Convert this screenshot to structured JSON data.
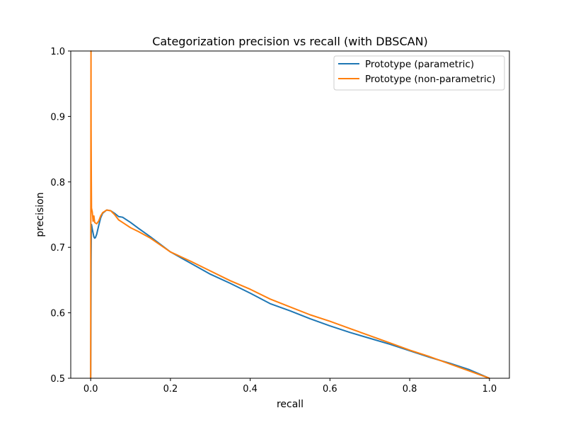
{
  "chart_data": {
    "type": "line",
    "title": "Categorization precision vs recall (with DBSCAN)",
    "xlabel": "recall",
    "ylabel": "precision",
    "xlim": [
      -0.05,
      1.05
    ],
    "ylim": [
      0.5,
      1.0
    ],
    "xticks": [
      0.0,
      0.2,
      0.4,
      0.6,
      0.8,
      1.0
    ],
    "xtick_labels": [
      "0.0",
      "0.2",
      "0.4",
      "0.6",
      "0.8",
      "1.0"
    ],
    "yticks": [
      0.5,
      0.6,
      0.7,
      0.8,
      0.9,
      1.0
    ],
    "ytick_labels": [
      "0.5",
      "0.6",
      "0.7",
      "0.8",
      "0.9",
      "1.0"
    ],
    "grid": false,
    "legend_position": "top-right",
    "series": [
      {
        "name": "Prototype (parametric)",
        "color": "#1f77b4",
        "points": [
          [
            0.0,
            0.5
          ],
          [
            0.0005,
            0.58
          ],
          [
            0.001,
            0.68
          ],
          [
            0.0015,
            0.72
          ],
          [
            0.002,
            0.735
          ],
          [
            0.004,
            0.728
          ],
          [
            0.006,
            0.722
          ],
          [
            0.008,
            0.716
          ],
          [
            0.01,
            0.714
          ],
          [
            0.012,
            0.715
          ],
          [
            0.015,
            0.72
          ],
          [
            0.02,
            0.733
          ],
          [
            0.025,
            0.745
          ],
          [
            0.03,
            0.752
          ],
          [
            0.04,
            0.757
          ],
          [
            0.05,
            0.756
          ],
          [
            0.06,
            0.752
          ],
          [
            0.07,
            0.747
          ],
          [
            0.08,
            0.746
          ],
          [
            0.1,
            0.738
          ],
          [
            0.12,
            0.729
          ],
          [
            0.15,
            0.716
          ],
          [
            0.2,
            0.693
          ],
          [
            0.25,
            0.676
          ],
          [
            0.3,
            0.659
          ],
          [
            0.35,
            0.645
          ],
          [
            0.4,
            0.63
          ],
          [
            0.45,
            0.614
          ],
          [
            0.5,
            0.603
          ],
          [
            0.55,
            0.591
          ],
          [
            0.6,
            0.58
          ],
          [
            0.65,
            0.57
          ],
          [
            0.7,
            0.561
          ],
          [
            0.75,
            0.552
          ],
          [
            0.8,
            0.542
          ],
          [
            0.85,
            0.532
          ],
          [
            0.9,
            0.523
          ],
          [
            0.95,
            0.513
          ],
          [
            1.0,
            0.5
          ]
        ]
      },
      {
        "name": "Prototype (non-parametric)",
        "color": "#ff7f0e",
        "points": [
          [
            0.0,
            0.5
          ],
          [
            0.0003,
            0.75
          ],
          [
            0.0006,
            0.92
          ],
          [
            0.0008,
            1.0
          ],
          [
            0.001,
            0.88
          ],
          [
            0.0013,
            0.84
          ],
          [
            0.0016,
            0.8
          ],
          [
            0.002,
            0.76
          ],
          [
            0.004,
            0.754
          ],
          [
            0.006,
            0.74
          ],
          [
            0.008,
            0.748
          ],
          [
            0.01,
            0.738
          ],
          [
            0.015,
            0.736
          ],
          [
            0.02,
            0.74
          ],
          [
            0.025,
            0.748
          ],
          [
            0.03,
            0.753
          ],
          [
            0.04,
            0.757
          ],
          [
            0.05,
            0.756
          ],
          [
            0.06,
            0.75
          ],
          [
            0.07,
            0.742
          ],
          [
            0.08,
            0.738
          ],
          [
            0.1,
            0.73
          ],
          [
            0.12,
            0.724
          ],
          [
            0.15,
            0.714
          ],
          [
            0.2,
            0.693
          ],
          [
            0.25,
            0.679
          ],
          [
            0.3,
            0.664
          ],
          [
            0.35,
            0.649
          ],
          [
            0.4,
            0.636
          ],
          [
            0.45,
            0.621
          ],
          [
            0.5,
            0.609
          ],
          [
            0.55,
            0.597
          ],
          [
            0.6,
            0.587
          ],
          [
            0.65,
            0.576
          ],
          [
            0.7,
            0.565
          ],
          [
            0.75,
            0.554
          ],
          [
            0.8,
            0.543
          ],
          [
            0.85,
            0.533
          ],
          [
            0.9,
            0.522
          ],
          [
            0.95,
            0.511
          ],
          [
            1.0,
            0.5
          ]
        ]
      }
    ]
  }
}
